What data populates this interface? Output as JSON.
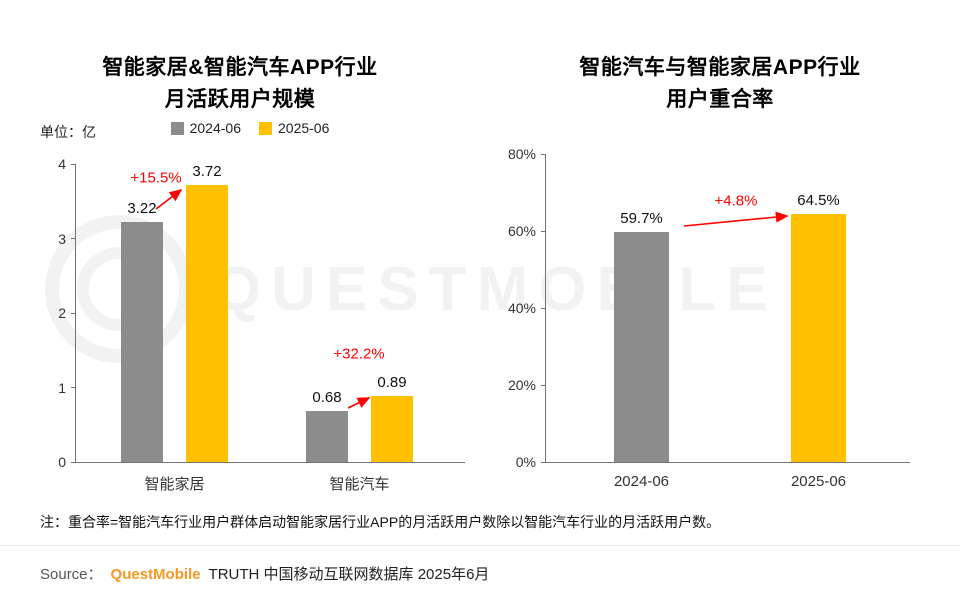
{
  "colors": {
    "gray": "#8c8c8c",
    "yellow": "#ffc000",
    "red": "#ff0000",
    "brand": "#f59a23",
    "axis": "#737373"
  },
  "watermark": {
    "text": "QUESTMOBILE"
  },
  "charts": [
    {
      "title_line1": "智能家居&智能汽车APP行业",
      "title_line2": "月活跃用户规模",
      "unit_label": "单位：亿",
      "legend": [
        {
          "label": "2024-06",
          "color": "#8c8c8c"
        },
        {
          "label": "2025-06",
          "color": "#ffc000"
        }
      ],
      "chart_data": {
        "type": "bar",
        "categories": [
          "智能家居",
          "智能汽车"
        ],
        "series": [
          {
            "name": "2024-06",
            "values": [
              3.22,
              0.68
            ],
            "labels": [
              "3.22",
              "0.68"
            ]
          },
          {
            "name": "2025-06",
            "values": [
              3.72,
              0.89
            ],
            "labels": [
              "3.72",
              "0.89"
            ]
          }
        ],
        "growth_labels": [
          "+15.5%",
          "+32.2%"
        ],
        "ylim": [
          0,
          4
        ],
        "yticks": [
          {
            "value": 0,
            "label": "0"
          },
          {
            "value": 1,
            "label": "1"
          },
          {
            "value": 2,
            "label": "2"
          },
          {
            "value": 3,
            "label": "3"
          },
          {
            "value": 4,
            "label": "4"
          }
        ],
        "unit": "亿",
        "grid": false,
        "legend_position": "top"
      }
    },
    {
      "title_line1": "智能汽车与智能家居APP行业",
      "title_line2": "用户重合率",
      "chart_data": {
        "type": "bar",
        "categories": [
          "2024-06",
          "2025-06"
        ],
        "values": [
          59.7,
          64.5
        ],
        "labels": [
          "59.7%",
          "64.5%"
        ],
        "bar_colors": [
          "#8c8c8c",
          "#ffc000"
        ],
        "growth_label": "+4.8%",
        "ylim": [
          0,
          80
        ],
        "yticks": [
          {
            "value": 0,
            "label": "0%"
          },
          {
            "value": 20,
            "label": "20%"
          },
          {
            "value": 40,
            "label": "40%"
          },
          {
            "value": 60,
            "label": "60%"
          },
          {
            "value": 80,
            "label": "80%"
          }
        ],
        "grid": false
      }
    }
  ],
  "note": "注：重合率=智能汽车行业用户群体启动智能家居行业APP的月活跃用户数除以智能汽车行业的月活跃用户数。",
  "source": {
    "label": "Source：",
    "brand": "QuestMobile",
    "rest": "TRUTH 中国移动互联网数据库 2025年6月"
  }
}
